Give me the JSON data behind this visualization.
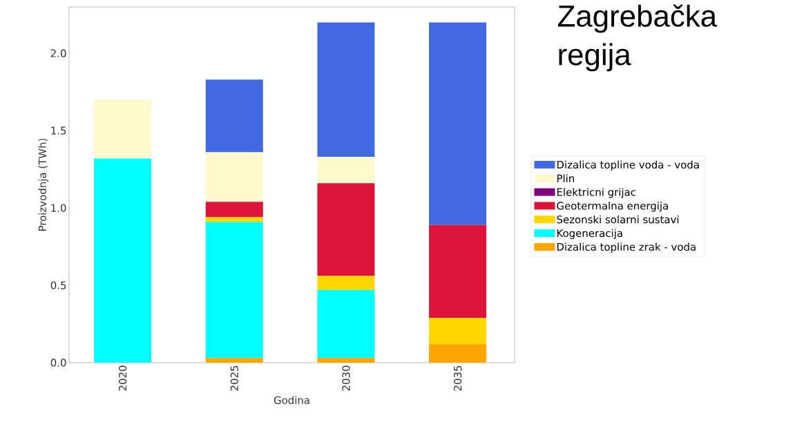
{
  "chart_data": {
    "type": "bar",
    "title": "Zagrebačka regija",
    "xlabel": "Godina",
    "ylabel": "Proizvodnja (TWh)",
    "categories": [
      "2020",
      "2025",
      "2030",
      "2035"
    ],
    "stacked": true,
    "legend": "right",
    "ylim": [
      0,
      2.3
    ],
    "yticks": [
      {
        "value": 0,
        "label": "0.0"
      },
      {
        "value": 0.5,
        "label": "0.5"
      },
      {
        "value": 1,
        "label": "1.0"
      },
      {
        "value": 1.5,
        "label": "1.5"
      },
      {
        "value": 2,
        "label": "2.0"
      }
    ],
    "series": [
      {
        "name": "Dizalica topline zrak - voda",
        "color": "#ffa500",
        "values": [
          0,
          0.03,
          0.03,
          0.12
        ]
      },
      {
        "name": "Kogeneracija",
        "color": "#00ffff",
        "values": [
          1.32,
          0.88,
          0.44,
          0
        ]
      },
      {
        "name": "Sezonski solarni sustavi",
        "color": "#ffd700",
        "values": [
          0,
          0.03,
          0.09,
          0.17
        ]
      },
      {
        "name": "Geotermalna energija",
        "color": "#dc143c",
        "values": [
          0,
          0.1,
          0.6,
          0.6
        ]
      },
      {
        "name": "Elektricni grijac",
        "color": "#800080",
        "values": [
          0,
          0,
          0,
          0
        ]
      },
      {
        "name": "Plin",
        "color": "#fffacd",
        "values": [
          0.38,
          0.32,
          0.17,
          0
        ]
      },
      {
        "name": "Dizalica topline voda - voda",
        "color": "#4169e1",
        "values": [
          0,
          0.47,
          0.87,
          1.31
        ]
      }
    ]
  }
}
